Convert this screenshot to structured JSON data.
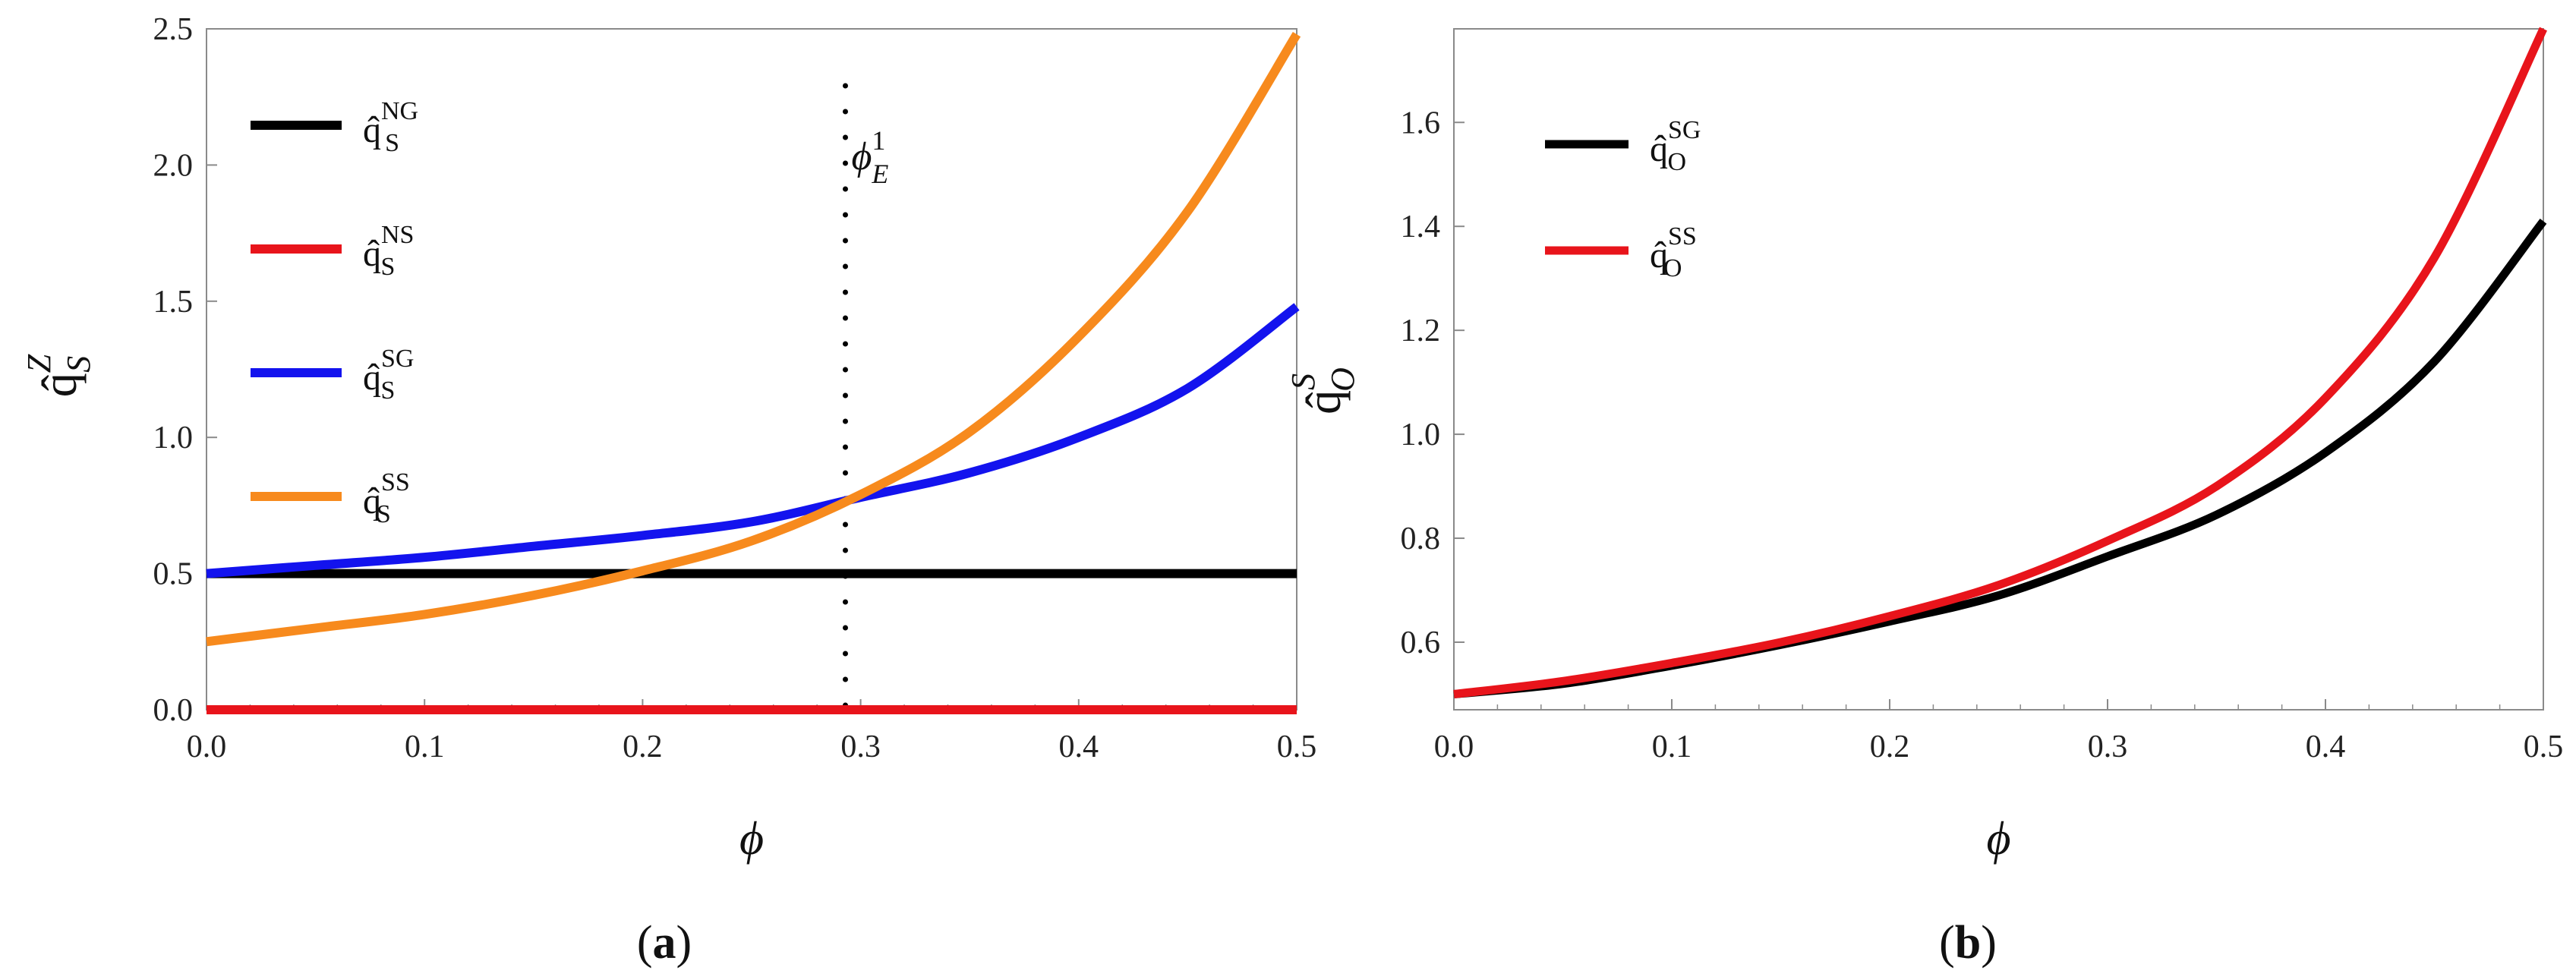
{
  "chart_data": [
    {
      "panel": "a",
      "caption": "(a)",
      "type": "line",
      "xlabel": "ϕ",
      "ylabel": {
        "base": "q̂",
        "sub": "S",
        "sup": "Z"
      },
      "xlim": [
        0,
        0.5
      ],
      "ylim": [
        0,
        2.5
      ],
      "xticks": [
        "0.0",
        "0.1",
        "0.2",
        "0.3",
        "0.4",
        "0.5"
      ],
      "yticks": [
        "0.0",
        "0.5",
        "1.0",
        "1.5",
        "2.0",
        "2.5"
      ],
      "legend_position": "top-left",
      "annotation": {
        "label_base": "ϕ",
        "label_sub": "E",
        "label_sup": "1",
        "x": 0.293,
        "style": "dotted vertical line"
      },
      "x": [
        0,
        0.05,
        0.1,
        0.15,
        0.2,
        0.25,
        0.3,
        0.35,
        0.4,
        0.45,
        0.5
      ],
      "series": [
        {
          "name": "NG",
          "label": {
            "base": "q̂",
            "sub": "S",
            "sup": "NG"
          },
          "color": "#000000",
          "values": [
            0.5,
            0.5,
            0.5,
            0.5,
            0.5,
            0.5,
            0.5,
            0.5,
            0.5,
            0.5,
            0.5
          ]
        },
        {
          "name": "NS",
          "label": {
            "base": "q̂",
            "sub": "S",
            "sup": "NS"
          },
          "color": "#e8141b",
          "values": [
            0,
            0,
            0,
            0,
            0,
            0,
            0,
            0,
            0,
            0,
            0
          ]
        },
        {
          "name": "SG",
          "label": {
            "base": "q̂",
            "sub": "S",
            "sup": "SG"
          },
          "color": "#1313ee",
          "values": [
            0.5,
            0.53,
            0.56,
            0.6,
            0.64,
            0.69,
            0.78,
            0.87,
            1.0,
            1.18,
            1.48
          ]
        },
        {
          "name": "SS",
          "label": {
            "base": "q̂",
            "sub": "S",
            "sup": "SS"
          },
          "color": "#f78a1d",
          "values": [
            0.25,
            0.3,
            0.35,
            0.42,
            0.51,
            0.62,
            0.79,
            1.02,
            1.37,
            1.83,
            2.48
          ]
        }
      ]
    },
    {
      "panel": "b",
      "caption": "(b)",
      "type": "line",
      "xlabel": "ϕ",
      "ylabel": {
        "base": "q̂",
        "sub": "O",
        "sup": "S"
      },
      "xlim": [
        0,
        0.5
      ],
      "ylim": [
        0.47,
        1.78
      ],
      "xticks": [
        "0.0",
        "0.1",
        "0.2",
        "0.3",
        "0.4",
        "0.5"
      ],
      "yticks": [
        "0.6",
        "0.8",
        "1.0",
        "1.2",
        "1.4",
        "1.6"
      ],
      "legend_position": "top-left",
      "x": [
        0,
        0.05,
        0.1,
        0.15,
        0.2,
        0.25,
        0.3,
        0.35,
        0.4,
        0.45,
        0.5
      ],
      "series": [
        {
          "name": "SG",
          "label": {
            "base": "q̂",
            "sub": "O",
            "sup": "SG"
          },
          "color": "#000000",
          "values": [
            0.5,
            0.52,
            0.555,
            0.595,
            0.64,
            0.69,
            0.765,
            0.845,
            0.965,
            1.14,
            1.41
          ]
        },
        {
          "name": "SS",
          "label": {
            "base": "q̂",
            "sub": "O",
            "sup": "SS"
          },
          "color": "#e8141b",
          "values": [
            0.5,
            0.525,
            0.56,
            0.6,
            0.65,
            0.71,
            0.795,
            0.9,
            1.07,
            1.34,
            1.78
          ]
        }
      ]
    }
  ]
}
